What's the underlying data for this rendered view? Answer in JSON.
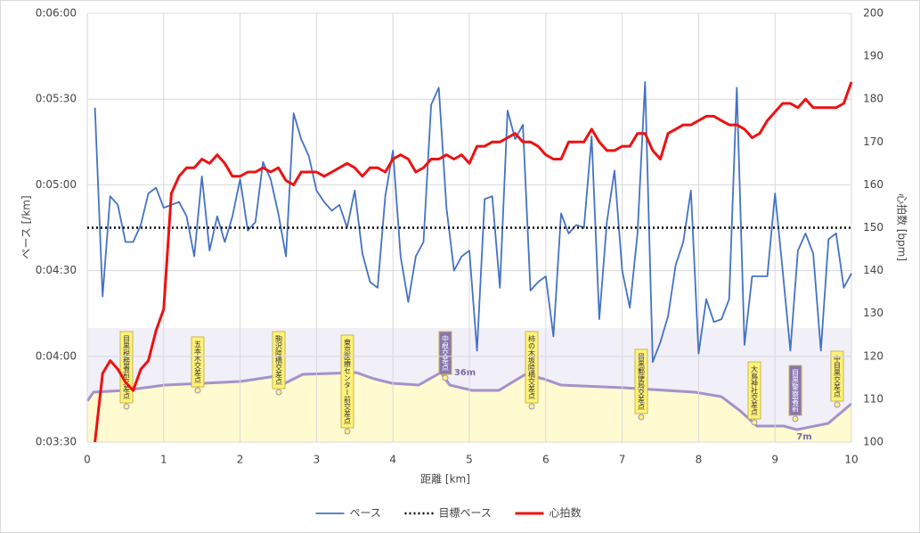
{
  "chart_data": {
    "type": "line",
    "xlabel": "距離 [km]",
    "ylabel": "ペース [/km]",
    "y2label": "心拍数 [bpm]",
    "xlim": [
      0,
      10
    ],
    "xticks": [
      0,
      1,
      2,
      3,
      4,
      5,
      6,
      7,
      8,
      9,
      10
    ],
    "ylim": [
      210,
      360
    ],
    "yticks": [
      {
        "value": 210,
        "label": "0:03:30"
      },
      {
        "value": 240,
        "label": "0:04:00"
      },
      {
        "value": 270,
        "label": "0:04:30"
      },
      {
        "value": 300,
        "label": "0:05:00"
      },
      {
        "value": 330,
        "label": "0:05:30"
      },
      {
        "value": 360,
        "label": "0:06:00"
      }
    ],
    "y2lim": [
      100,
      200
    ],
    "y2ticks": [
      100,
      110,
      120,
      130,
      140,
      150,
      160,
      170,
      180,
      190,
      200
    ],
    "grid": true,
    "legend": "bottom",
    "annotations": [
      "目黒税務署前交差点",
      "五本木交差点",
      "駒沢陸橋交差点",
      "東京医療センター前交差点",
      "中根交差点",
      "36m",
      "柿の木坂陸橋交差点",
      "目黒郵便局交差点",
      "大鳥神社交差点",
      "目黒警察署前",
      "7m",
      "中目黒交差点"
    ],
    "series": [
      {
        "name": "ペース",
        "color": "#4472c4",
        "style": "solid",
        "width": 1.8,
        "x": [
          0.1,
          0.2,
          0.3,
          0.4,
          0.5,
          0.6,
          0.7,
          0.8,
          0.9,
          1.0,
          1.1,
          1.2,
          1.3,
          1.4,
          1.5,
          1.6,
          1.7,
          1.8,
          1.9,
          2.0,
          2.1,
          2.2,
          2.3,
          2.4,
          2.5,
          2.6,
          2.7,
          2.8,
          2.9,
          3.0,
          3.1,
          3.2,
          3.3,
          3.4,
          3.5,
          3.6,
          3.7,
          3.8,
          3.9,
          4.0,
          4.1,
          4.2,
          4.3,
          4.4,
          4.5,
          4.6,
          4.7,
          4.8,
          4.9,
          5.0,
          5.1,
          5.2,
          5.3,
          5.4,
          5.5,
          5.6,
          5.7,
          5.8,
          5.9,
          6.0,
          6.1,
          6.2,
          6.3,
          6.4,
          6.5,
          6.6,
          6.7,
          6.8,
          6.9,
          7.0,
          7.1,
          7.2,
          7.3,
          7.4,
          7.5,
          7.6,
          7.7,
          7.8,
          7.9,
          8.0,
          8.1,
          8.2,
          8.3,
          8.4,
          8.5,
          8.6,
          8.7,
          8.8,
          8.9,
          9.0,
          9.1,
          9.2,
          9.3,
          9.4,
          9.5,
          9.6,
          9.7,
          9.8,
          9.9,
          10.0
        ],
        "values": [
          327,
          261,
          296,
          293,
          280,
          280,
          286,
          297,
          299,
          292,
          293,
          294,
          289,
          275,
          303,
          277,
          289,
          280,
          289,
          302,
          284,
          287,
          308,
          302,
          290,
          275,
          325,
          316,
          310,
          298,
          294,
          291,
          293,
          285,
          298,
          276,
          266,
          264,
          296,
          312,
          275,
          259,
          275,
          280,
          328,
          334,
          292,
          270,
          275,
          277,
          242,
          295,
          296,
          264,
          326,
          316,
          321,
          263,
          266,
          268,
          247,
          290,
          283,
          286,
          285,
          317,
          253,
          287,
          305,
          270,
          257,
          283,
          336,
          238,
          245,
          254,
          272,
          280,
          298,
          241,
          260,
          252,
          253,
          260,
          334,
          244,
          268,
          268,
          268,
          297,
          270,
          242,
          277,
          283,
          276,
          242,
          281,
          283,
          264,
          269
        ]
      },
      {
        "name": "目標ペース",
        "color": "#000000",
        "style": "dotted",
        "width": 2.5,
        "x": [
          0,
          10
        ],
        "values": [
          285,
          285
        ]
      },
      {
        "name": "心拍数",
        "color": "#ee1111",
        "style": "solid",
        "width": 3,
        "axis": "y2",
        "x": [
          0.1,
          0.2,
          0.3,
          0.4,
          0.5,
          0.6,
          0.7,
          0.8,
          0.9,
          1.0,
          1.1,
          1.2,
          1.3,
          1.4,
          1.5,
          1.6,
          1.7,
          1.8,
          1.9,
          2.0,
          2.1,
          2.2,
          2.3,
          2.4,
          2.5,
          2.6,
          2.7,
          2.8,
          2.9,
          3.0,
          3.1,
          3.2,
          3.3,
          3.4,
          3.5,
          3.6,
          3.7,
          3.8,
          3.9,
          4.0,
          4.1,
          4.2,
          4.3,
          4.4,
          4.5,
          4.6,
          4.7,
          4.8,
          4.9,
          5.0,
          5.1,
          5.2,
          5.3,
          5.4,
          5.5,
          5.6,
          5.7,
          5.8,
          5.9,
          6.0,
          6.1,
          6.2,
          6.3,
          6.4,
          6.5,
          6.6,
          6.7,
          6.8,
          6.9,
          7.0,
          7.1,
          7.2,
          7.3,
          7.4,
          7.5,
          7.6,
          7.7,
          7.8,
          7.9,
          8.0,
          8.1,
          8.2,
          8.3,
          8.4,
          8.5,
          8.6,
          8.7,
          8.8,
          8.9,
          9.0,
          9.1,
          9.2,
          9.3,
          9.4,
          9.5,
          9.6,
          9.7,
          9.8,
          9.9,
          10.0
        ],
        "values": [
          100,
          116,
          119,
          117,
          114,
          112,
          117,
          119,
          126,
          131,
          158,
          162,
          164,
          164,
          166,
          165,
          167,
          165,
          162,
          162,
          163,
          163,
          164,
          163,
          164,
          161,
          160,
          163,
          163,
          163,
          162,
          163,
          164,
          165,
          164,
          162,
          164,
          164,
          163,
          166,
          167,
          166,
          163,
          164,
          166,
          166,
          167,
          166,
          167,
          165,
          169,
          169,
          170,
          170,
          171,
          172,
          170,
          170,
          169,
          167,
          166,
          166,
          170,
          170,
          170,
          173,
          170,
          168,
          168,
          169,
          169,
          172,
          172,
          168,
          166,
          172,
          173,
          174,
          174,
          175,
          176,
          176,
          175,
          174,
          174,
          173,
          171,
          172,
          175,
          177,
          179,
          179,
          178,
          180,
          178,
          178,
          178,
          178,
          179,
          184
        ]
      }
    ]
  }
}
